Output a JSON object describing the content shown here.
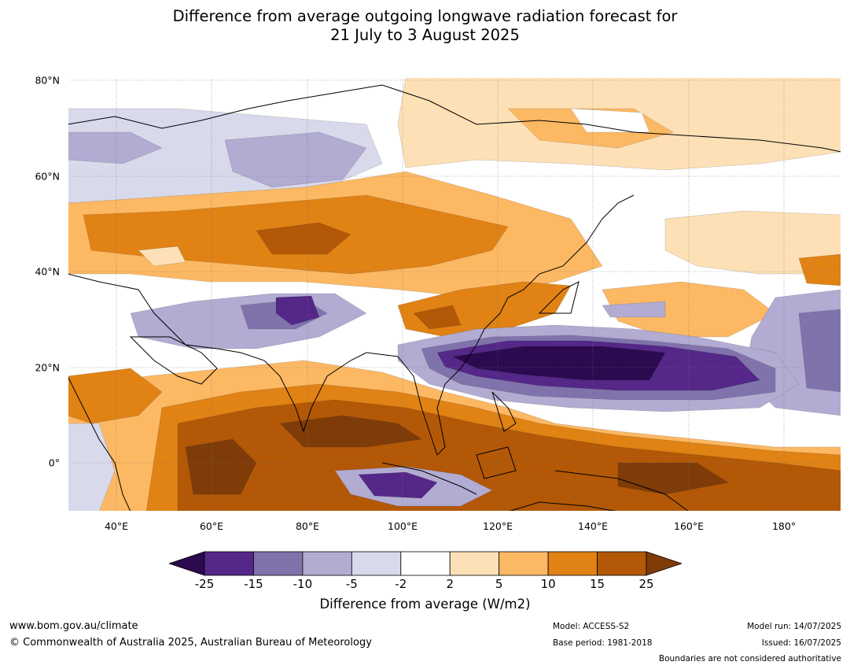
{
  "title": {
    "line1": "Difference from average outgoing longwave radiation forecast for",
    "line2": "21 July to 3 August 2025"
  },
  "map": {
    "lat_labels": [
      "80°N",
      "60°N",
      "40°N",
      "20°N",
      "0°"
    ],
    "lon_labels": [
      "40°E",
      "60°E",
      "80°E",
      "100°E",
      "120°E",
      "140°E",
      "160°E",
      "180°"
    ]
  },
  "colorbar": {
    "label": "Difference from average (W/m2)",
    "ticks": [
      "-25",
      "-15",
      "-10",
      "-5",
      "-2",
      "2",
      "5",
      "10",
      "15",
      "25"
    ],
    "colors": [
      "#2b0a4f",
      "#542788",
      "#8073ac",
      "#b2abd2",
      "#d8daeb",
      "#ffffff",
      "#fee0b6",
      "#fdb863",
      "#e08214",
      "#b35806",
      "#7f3b08"
    ]
  },
  "footer": {
    "website": "www.bom.gov.au/climate",
    "copyright": "© Commonwealth of Australia 2025, Australian Bureau of Meteorology",
    "model": "Model: ACCESS-S2",
    "base_period": "Base period: 1981-2018",
    "model_run": "Model run: 14/07/2025",
    "issued": "Issued: 16/07/2025",
    "disclaimer": "Boundaries are not considered authoritative"
  }
}
